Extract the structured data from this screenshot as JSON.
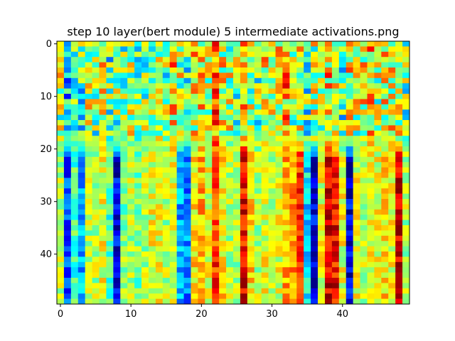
{
  "chart_data": {
    "type": "heatmap",
    "title": "step 10 layer(bert module) 5 intermediate activations.png",
    "xlabel": "",
    "ylabel": "",
    "rows": 50,
    "cols": 50,
    "colormap": "jet",
    "x_ticks": [
      0,
      10,
      20,
      30,
      40
    ],
    "y_ticks": [
      0,
      10,
      20,
      30,
      40
    ],
    "value_range": [
      0,
      1
    ],
    "grid": false,
    "legend": "none",
    "column_profile_early": [
      0.55,
      0.35,
      0.5,
      0.45,
      0.55,
      0.5,
      0.6,
      0.45,
      0.5,
      0.5,
      0.55,
      0.45,
      0.5,
      0.55,
      0.6,
      0.5,
      0.65,
      0.55,
      0.45,
      0.6,
      0.6,
      0.55,
      0.8,
      0.6,
      0.55,
      0.5,
      0.65,
      0.55,
      0.5,
      0.6,
      0.55,
      0.6,
      0.7,
      0.55,
      0.6,
      0.45,
      0.55,
      0.55,
      0.65,
      0.55,
      0.45,
      0.6,
      0.55,
      0.6,
      0.65,
      0.55,
      0.6,
      0.6,
      0.55,
      0.5
    ],
    "column_profile_late": [
      0.55,
      0.2,
      0.45,
      0.3,
      0.55,
      0.55,
      0.6,
      0.45,
      0.1,
      0.5,
      0.55,
      0.5,
      0.55,
      0.6,
      0.6,
      0.55,
      0.6,
      0.3,
      0.25,
      0.65,
      0.7,
      0.6,
      0.82,
      0.65,
      0.55,
      0.55,
      0.88,
      0.65,
      0.55,
      0.6,
      0.55,
      0.6,
      0.7,
      0.72,
      0.85,
      0.35,
      0.1,
      0.6,
      0.9,
      0.88,
      0.6,
      0.1,
      0.6,
      0.55,
      0.6,
      0.6,
      0.65,
      0.6,
      0.92,
      0.55
    ]
  }
}
